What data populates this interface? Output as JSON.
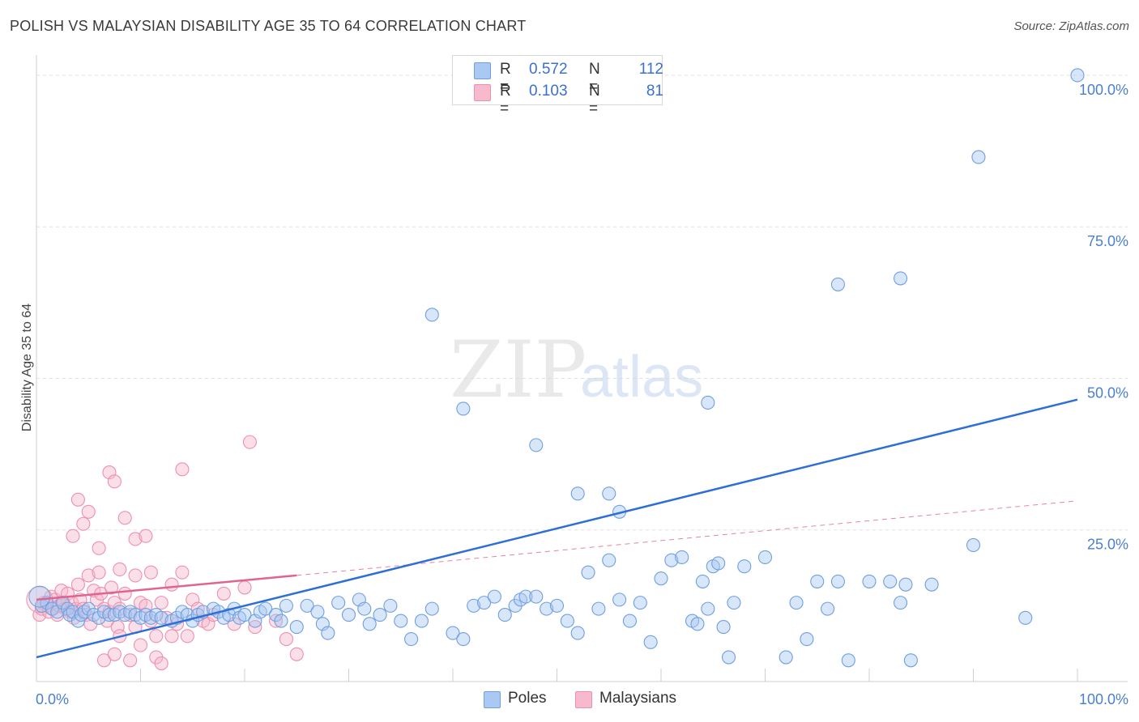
{
  "title": "POLISH VS MALAYSIAN DISABILITY AGE 35 TO 64 CORRELATION CHART",
  "source": "Source: ZipAtlas.com",
  "watermark": {
    "zip": "ZIP",
    "atlas": "atlas"
  },
  "legend": {
    "r_label": "R =",
    "n_label": "N =",
    "poles": {
      "r": "0.572",
      "n": "112"
    },
    "malaysians": {
      "r": "0.103",
      "n": "81"
    }
  },
  "colors": {
    "poles_fill": "#a9c8f2",
    "poles_stroke": "#6f9fe0",
    "poles_line": "#2e6fd6",
    "malaysians_fill": "#f7b9cc",
    "malaysians_stroke": "#ee8fae",
    "malaysians_line": "#e0648f",
    "axis_text": "#4a7fd0",
    "grid": "#e0e0e0"
  },
  "chart_data": {
    "type": "scatter",
    "title": "POLISH VS MALAYSIAN DISABILITY AGE 35 TO 64 CORRELATION CHART",
    "xlabel": "",
    "ylabel": "Disability Age 35 to 64",
    "xlim": [
      0,
      100
    ],
    "ylim": [
      0,
      102
    ],
    "x_tick_labels": [
      "0.0%",
      "100.0%"
    ],
    "y_ticks": [
      25,
      50,
      75,
      100
    ],
    "y_tick_labels": [
      "25.0%",
      "50.0%",
      "75.0%",
      "100.0%"
    ],
    "legend_bottom": [
      "Poles",
      "Malaysians"
    ],
    "series": [
      {
        "name": "Poles",
        "r": 0.572,
        "n": 112,
        "trend": {
          "x": [
            0,
            100
          ],
          "y": [
            4.0,
            46.5
          ],
          "style": "solid"
        },
        "points": [
          [
            0.5,
            12.5
          ],
          [
            1,
            13
          ],
          [
            1.5,
            12
          ],
          [
            2,
            11.5
          ],
          [
            2.5,
            13
          ],
          [
            3,
            12
          ],
          [
            3.2,
            11
          ],
          [
            3.5,
            11.5
          ],
          [
            4,
            10
          ],
          [
            4.3,
            11
          ],
          [
            4.6,
            11.5
          ],
          [
            5,
            12
          ],
          [
            5.5,
            11
          ],
          [
            6,
            10.5
          ],
          [
            6.5,
            11.5
          ],
          [
            7,
            11
          ],
          [
            7.5,
            11
          ],
          [
            8,
            11.5
          ],
          [
            8.5,
            11
          ],
          [
            9,
            11.5
          ],
          [
            9.5,
            11
          ],
          [
            10,
            10.5
          ],
          [
            10.5,
            11
          ],
          [
            11,
            10.5
          ],
          [
            11.5,
            11
          ],
          [
            12,
            10.5
          ],
          [
            13,
            10
          ],
          [
            13.5,
            10.5
          ],
          [
            14,
            11.5
          ],
          [
            14.5,
            11
          ],
          [
            15,
            10
          ],
          [
            15.5,
            11
          ],
          [
            16,
            11.5
          ],
          [
            17,
            12
          ],
          [
            17.5,
            11.5
          ],
          [
            18,
            10.5
          ],
          [
            18.5,
            11
          ],
          [
            19,
            12
          ],
          [
            19.5,
            10.5
          ],
          [
            20,
            11
          ],
          [
            21,
            10
          ],
          [
            21.5,
            11.5
          ],
          [
            22,
            12
          ],
          [
            23,
            11
          ],
          [
            23.5,
            10
          ],
          [
            24,
            12.5
          ],
          [
            25,
            9
          ],
          [
            26,
            12.5
          ],
          [
            27,
            11.5
          ],
          [
            27.5,
            9.5
          ],
          [
            28,
            8
          ],
          [
            29,
            13
          ],
          [
            30,
            11
          ],
          [
            31,
            13.5
          ],
          [
            31.5,
            12
          ],
          [
            32,
            9.5
          ],
          [
            33,
            11
          ],
          [
            34,
            12.5
          ],
          [
            35,
            10
          ],
          [
            36,
            7
          ],
          [
            37,
            10
          ],
          [
            38,
            12
          ],
          [
            40,
            8
          ],
          [
            41,
            7
          ],
          [
            42,
            12.5
          ],
          [
            43,
            13
          ],
          [
            44,
            14
          ],
          [
            45,
            11
          ],
          [
            46,
            12.5
          ],
          [
            46.5,
            13.5
          ],
          [
            47,
            14
          ],
          [
            48,
            14
          ],
          [
            49,
            12
          ],
          [
            50,
            12.5
          ],
          [
            51,
            10
          ],
          [
            52,
            8
          ],
          [
            53,
            18
          ],
          [
            54,
            12
          ],
          [
            55,
            20
          ],
          [
            56,
            13.5
          ],
          [
            57,
            10
          ],
          [
            58,
            13
          ],
          [
            59,
            6.5
          ],
          [
            60,
            17
          ],
          [
            61,
            20
          ],
          [
            62,
            20.5
          ],
          [
            63,
            10
          ],
          [
            63.5,
            9.5
          ],
          [
            64,
            16.5
          ],
          [
            64.5,
            12
          ],
          [
            65,
            19
          ],
          [
            65.5,
            19.5
          ],
          [
            66,
            9
          ],
          [
            66.5,
            4
          ],
          [
            67,
            13
          ],
          [
            68,
            19
          ],
          [
            70,
            20.5
          ],
          [
            72,
            4
          ],
          [
            73,
            13
          ],
          [
            74,
            7
          ],
          [
            75,
            16.5
          ],
          [
            76,
            12
          ],
          [
            77,
            16.5
          ],
          [
            78,
            3.5
          ],
          [
            80,
            16.5
          ],
          [
            82,
            16.5
          ],
          [
            83,
            13
          ],
          [
            83.5,
            16
          ],
          [
            84,
            3.5
          ],
          [
            86,
            16
          ],
          [
            90,
            22.5
          ],
          [
            95,
            10.5
          ]
        ],
        "outliers": [
          [
            38,
            60.5
          ],
          [
            41,
            45
          ],
          [
            48,
            39
          ],
          [
            52,
            31
          ],
          [
            55,
            31
          ],
          [
            56,
            28
          ],
          [
            64.5,
            46
          ],
          [
            77,
            65.5
          ],
          [
            83,
            66.5
          ],
          [
            90.5,
            86.5
          ],
          [
            100,
            100
          ]
        ]
      },
      {
        "name": "Malaysians",
        "r": 0.103,
        "n": 81,
        "trend": {
          "x": [
            0,
            25
          ],
          "y": [
            13.5,
            17.5
          ],
          "style": "solid",
          "extended_to": [
            100,
            29.8
          ],
          "extended_style": "dashed"
        },
        "points": [
          [
            0.3,
            11
          ],
          [
            0.5,
            12
          ],
          [
            0.7,
            13
          ],
          [
            1,
            12.5
          ],
          [
            1.2,
            11.5
          ],
          [
            1.4,
            14
          ],
          [
            1.6,
            12
          ],
          [
            1.8,
            13.5
          ],
          [
            2,
            11
          ],
          [
            2.2,
            12.5
          ],
          [
            2.4,
            15
          ],
          [
            2.6,
            13
          ],
          [
            2.8,
            12
          ],
          [
            3,
            14.5
          ],
          [
            3.2,
            11.5
          ],
          [
            3.4,
            13
          ],
          [
            3.6,
            10.5
          ],
          [
            3.8,
            12
          ],
          [
            4,
            16
          ],
          [
            4.2,
            13.5
          ],
          [
            4.5,
            12
          ],
          [
            4.8,
            11
          ],
          [
            5,
            17.5
          ],
          [
            5.2,
            9.5
          ],
          [
            5.5,
            15
          ],
          [
            5.8,
            13.5
          ],
          [
            6,
            18
          ],
          [
            6.2,
            14.5
          ],
          [
            6.5,
            12
          ],
          [
            6.8,
            10
          ],
          [
            7,
            11.5
          ],
          [
            7.2,
            15.5
          ],
          [
            7.5,
            13
          ],
          [
            7.8,
            9
          ],
          [
            8,
            12
          ],
          [
            8.5,
            14.5
          ],
          [
            9,
            11
          ],
          [
            9.5,
            9
          ],
          [
            10,
            13
          ],
          [
            10.5,
            12.5
          ],
          [
            11,
            10
          ],
          [
            11.5,
            7.5
          ],
          [
            12,
            13
          ],
          [
            12.5,
            10.5
          ],
          [
            13,
            16
          ],
          [
            13.5,
            9.5
          ],
          [
            14,
            18
          ],
          [
            14.5,
            7.5
          ],
          [
            15,
            13.5
          ],
          [
            15.5,
            12
          ],
          [
            16,
            10
          ],
          [
            16.5,
            9.5
          ],
          [
            17,
            11
          ],
          [
            18,
            14.5
          ],
          [
            19,
            9.5
          ],
          [
            20,
            15.5
          ],
          [
            21,
            9
          ],
          [
            23,
            10
          ],
          [
            24,
            7
          ],
          [
            25,
            4.5
          ],
          [
            6.5,
            3.5
          ],
          [
            7.5,
            4.5
          ],
          [
            8,
            7.5
          ],
          [
            9,
            3.5
          ],
          [
            10,
            6
          ],
          [
            11.5,
            4
          ],
          [
            12,
            3
          ],
          [
            13,
            7.5
          ]
        ],
        "outliers": [
          [
            3.5,
            24
          ],
          [
            4,
            30
          ],
          [
            4.5,
            26
          ],
          [
            5,
            28
          ],
          [
            6,
            22
          ],
          [
            7,
            34.5
          ],
          [
            7.5,
            33
          ],
          [
            8.5,
            27
          ],
          [
            9.5,
            23.5
          ],
          [
            10.5,
            24
          ],
          [
            14,
            35
          ],
          [
            20.5,
            39.5
          ],
          [
            8,
            18.5
          ],
          [
            9.5,
            17.5
          ],
          [
            11,
            18
          ]
        ]
      }
    ]
  }
}
